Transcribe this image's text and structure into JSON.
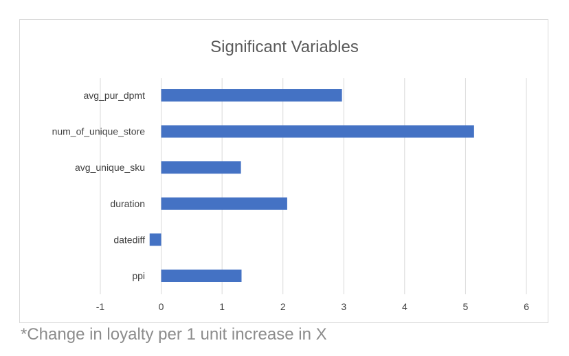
{
  "chart_data": {
    "type": "bar",
    "orientation": "horizontal",
    "title": "Significant Variables",
    "categories": [
      "avg_pur_dpmt",
      "num_of_unique_store",
      "avg_unique_sku",
      "duration",
      "datediff",
      "ppi"
    ],
    "values": [
      2.97,
      5.14,
      1.31,
      2.07,
      -0.19,
      1.32
    ],
    "xlim": [
      -1,
      6
    ],
    "xticks": [
      "-1",
      "0",
      "1",
      "2",
      "3",
      "4",
      "5",
      "6"
    ],
    "xlabel": "",
    "ylabel": "",
    "grid": "vertical",
    "legend": "none",
    "bar_color": "#4472c4",
    "grid_color": "#d9d9d9"
  },
  "footnote": "*Change in loyalty per 1 unit increase in X"
}
